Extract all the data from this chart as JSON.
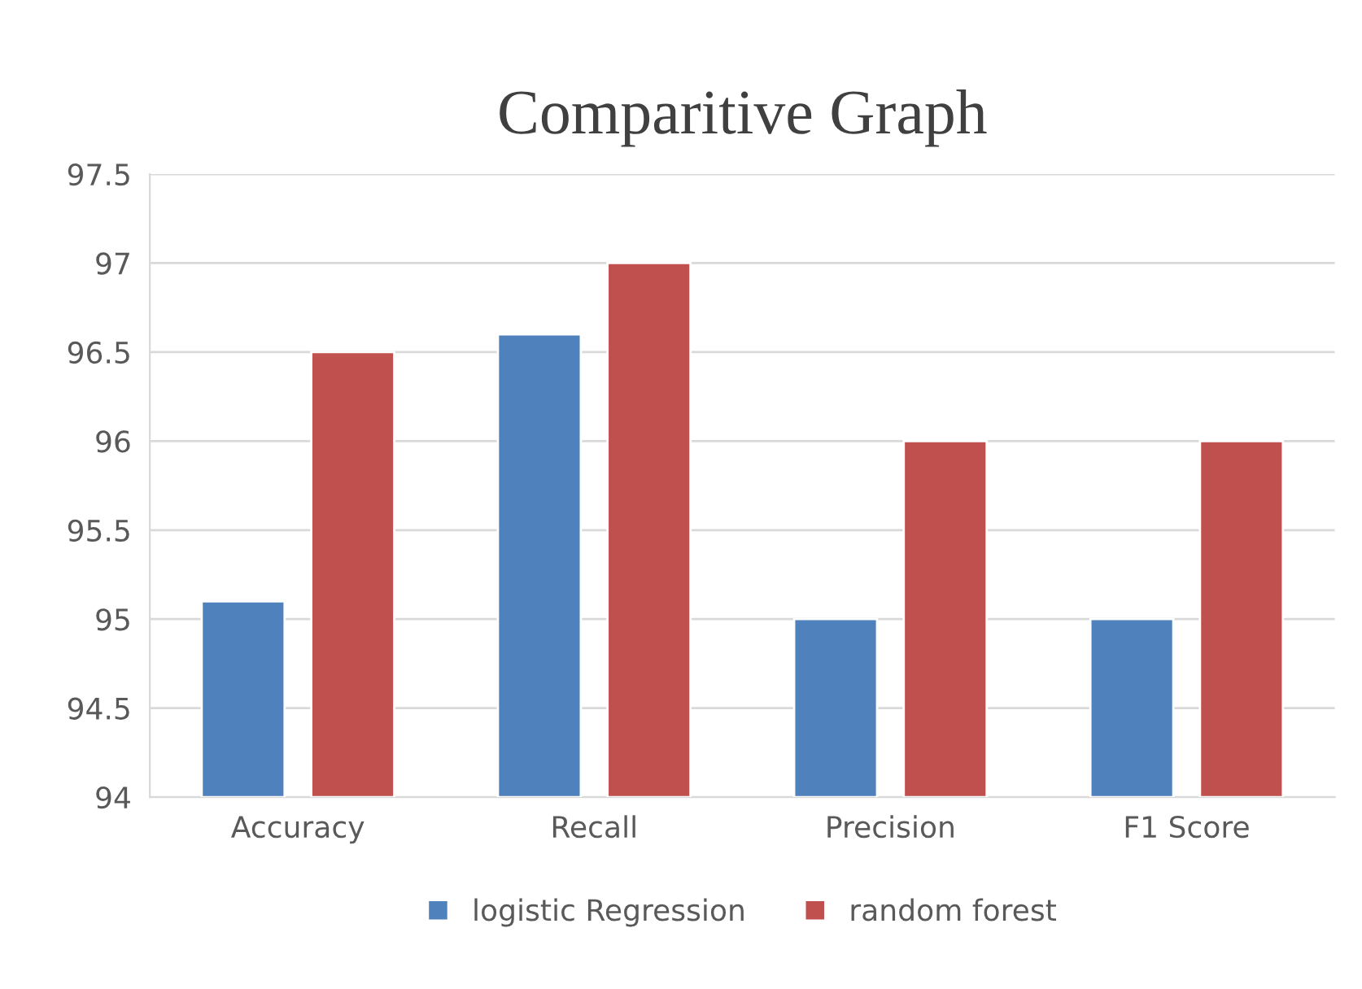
{
  "chart_data": {
    "type": "bar",
    "title": "Comparitive Graph",
    "categories": [
      "Accuracy",
      "Recall",
      "Precision",
      "F1 Score"
    ],
    "series": [
      {
        "name": "logistic Regression",
        "color": "#4f81bd",
        "values": [
          95.1,
          96.6,
          95.0,
          95.0
        ]
      },
      {
        "name": "random forest",
        "color": "#c0504d",
        "values": [
          96.5,
          97.0,
          96.0,
          96.0
        ]
      }
    ],
    "ylim": [
      94,
      97.5
    ],
    "yticks": [
      94,
      94.5,
      95,
      95.5,
      96,
      96.5,
      97,
      97.5
    ],
    "grid": "y",
    "legend": "bottom"
  }
}
